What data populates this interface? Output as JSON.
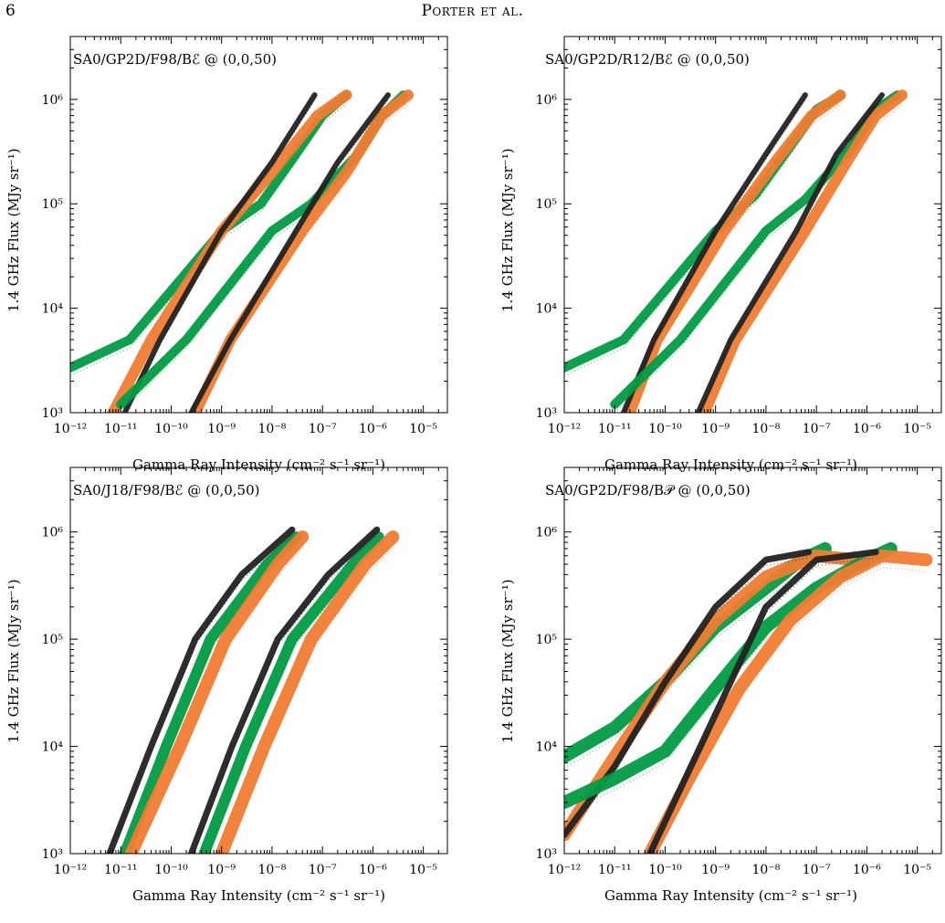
{
  "page": {
    "number": "6",
    "running_head": "Porter et al."
  },
  "colors": {
    "green": "#009c45",
    "orange": "#f07c32",
    "black": "#222222"
  },
  "chart_data": [
    {
      "type": "scatter",
      "title": "SA0/GP2D/F98/Bℰ @ (0,0,50)",
      "xlabel": "Gamma Ray Intensity (cm⁻² s⁻¹ sr⁻¹)",
      "ylabel": "1.4 GHz Flux (MJy sr⁻¹)",
      "x_scale": "log",
      "y_scale": "log",
      "xlim": [
        1e-12,
        3e-05
      ],
      "ylim": [
        1000,
        4000000
      ],
      "x_ticks": [
        "10⁻¹²",
        "10⁻¹¹",
        "10⁻¹⁰",
        "10⁻⁹",
        "10⁻⁸",
        "10⁻⁷",
        "10⁻⁶",
        "10⁻⁵"
      ],
      "y_ticks": [
        "10³",
        "10⁴",
        "10⁵",
        "10⁶"
      ],
      "series": [
        {
          "color": "green",
          "width": 10,
          "points": [
            [
              1e-12,
              2700
            ],
            [
              1.5e-11,
              5000
            ],
            [
              1e-09,
              55000
            ],
            [
              6e-09,
              100000
            ],
            [
              3e-08,
              300000
            ],
            [
              1e-07,
              700000
            ],
            [
              3e-07,
              1100000
            ]
          ]
        },
        {
          "color": "orange",
          "width": 12,
          "points": [
            [
              7e-12,
              1000
            ],
            [
              4e-11,
              5000
            ],
            [
              1e-09,
              55000
            ],
            [
              1e-08,
              200000
            ],
            [
              8e-08,
              700000
            ],
            [
              3e-07,
              1100000
            ]
          ]
        },
        {
          "color": "black",
          "width": 6,
          "points": [
            [
              1.2e-11,
              1000
            ],
            [
              6e-11,
              5000
            ],
            [
              1e-09,
              55000
            ],
            [
              1e-08,
              250000
            ],
            [
              7e-08,
              1100000
            ]
          ]
        },
        {
          "color": "green",
          "width": 10,
          "points": [
            [
              1e-11,
              1200
            ],
            [
              2e-10,
              5000
            ],
            [
              1e-08,
              55000
            ],
            [
              6e-08,
              100000
            ],
            [
              5e-07,
              300000
            ],
            [
              1.5e-06,
              700000
            ],
            [
              4e-06,
              1100000
            ]
          ]
        },
        {
          "color": "orange",
          "width": 12,
          "points": [
            [
              3e-10,
              1000
            ],
            [
              1.5e-09,
              5000
            ],
            [
              4e-08,
              55000
            ],
            [
              3e-07,
              200000
            ],
            [
              1.5e-06,
              700000
            ],
            [
              5e-06,
              1100000
            ]
          ]
        },
        {
          "color": "black",
          "width": 6,
          "points": [
            [
              2.5e-10,
              1000
            ],
            [
              1.5e-09,
              5000
            ],
            [
              3e-08,
              55000
            ],
            [
              2e-07,
              250000
            ],
            [
              2e-06,
              1100000
            ]
          ]
        }
      ]
    },
    {
      "type": "scatter",
      "title": "SA0/GP2D/R12/Bℰ @ (0,0,50)",
      "xlabel": "Gamma Ray Intensity (cm⁻² s⁻¹ sr⁻¹)",
      "ylabel": "1.4 GHz Flux (MJy sr⁻¹)",
      "x_scale": "log",
      "y_scale": "log",
      "xlim": [
        1e-12,
        3e-05
      ],
      "ylim": [
        1000,
        4000000
      ],
      "x_ticks": [
        "10⁻¹²",
        "10⁻¹¹",
        "10⁻¹⁰",
        "10⁻⁹",
        "10⁻⁸",
        "10⁻⁷",
        "10⁻⁶",
        "10⁻⁵"
      ],
      "y_ticks": [
        "10³",
        "10⁴",
        "10⁵",
        "10⁶"
      ],
      "series": [
        {
          "color": "green",
          "width": 10,
          "points": [
            [
              1e-12,
              2700
            ],
            [
              1.5e-11,
              5000
            ],
            [
              1e-09,
              55000
            ],
            [
              6e-09,
              120000
            ],
            [
              3e-08,
              350000
            ],
            [
              1e-07,
              800000
            ],
            [
              3e-07,
              1100000
            ]
          ]
        },
        {
          "color": "orange",
          "width": 12,
          "points": [
            [
              2e-11,
              1000
            ],
            [
              7e-11,
              5000
            ],
            [
              1.5e-09,
              55000
            ],
            [
              1.5e-08,
              250000
            ],
            [
              8e-08,
              700000
            ],
            [
              3e-07,
              1100000
            ]
          ]
        },
        {
          "color": "black",
          "width": 6,
          "points": [
            [
              1.5e-11,
              1000
            ],
            [
              6e-11,
              5000
            ],
            [
              1e-09,
              55000
            ],
            [
              1e-08,
              300000
            ],
            [
              6e-08,
              1100000
            ]
          ]
        },
        {
          "color": "green",
          "width": 10,
          "points": [
            [
              1e-11,
              1200
            ],
            [
              2e-10,
              5000
            ],
            [
              1e-08,
              55000
            ],
            [
              6e-08,
              110000
            ],
            [
              5e-07,
              350000
            ],
            [
              1.5e-06,
              800000
            ],
            [
              4e-06,
              1100000
            ]
          ]
        },
        {
          "color": "orange",
          "width": 12,
          "points": [
            [
              6e-10,
              1000
            ],
            [
              2.5e-09,
              5000
            ],
            [
              6e-08,
              55000
            ],
            [
              4e-07,
              250000
            ],
            [
              1.5e-06,
              700000
            ],
            [
              5e-06,
              1100000
            ]
          ]
        },
        {
          "color": "black",
          "width": 6,
          "points": [
            [
              4.5e-10,
              1000
            ],
            [
              2e-09,
              5000
            ],
            [
              4e-08,
              55000
            ],
            [
              2.5e-07,
              300000
            ],
            [
              2e-06,
              1100000
            ]
          ]
        }
      ]
    },
    {
      "type": "scatter",
      "title": "SA0/J18/F98/Bℰ @ (0,0,50)",
      "xlabel": "Gamma Ray Intensity (cm⁻² s⁻¹ sr⁻¹)",
      "ylabel": "1.4 GHz Flux (MJy sr⁻¹)",
      "x_scale": "log",
      "y_scale": "log",
      "xlim": [
        1e-12,
        3e-05
      ],
      "ylim": [
        1000,
        4000000
      ],
      "x_ticks": [
        "10⁻¹²",
        "10⁻¹¹",
        "10⁻¹⁰",
        "10⁻⁹",
        "10⁻⁸",
        "10⁻⁷",
        "10⁻⁶",
        "10⁻⁵"
      ],
      "y_ticks": [
        "10³",
        "10⁴",
        "10⁵",
        "10⁶"
      ],
      "series": [
        {
          "color": "green",
          "width": 12,
          "points": [
            [
              1.2e-11,
              1000
            ],
            [
              8e-11,
              10000
            ],
            [
              6e-10,
              100000
            ],
            [
              8e-09,
              500000
            ],
            [
              3e-08,
              900000
            ]
          ]
        },
        {
          "color": "orange",
          "width": 14,
          "points": [
            [
              1.6e-11,
              1000
            ],
            [
              1.5e-10,
              10000
            ],
            [
              1.2e-09,
              100000
            ],
            [
              1.3e-08,
              500000
            ],
            [
              4e-08,
              900000
            ]
          ]
        },
        {
          "color": "black",
          "width": 7,
          "points": [
            [
              6e-12,
              1000
            ],
            [
              4e-11,
              10000
            ],
            [
              3e-10,
              100000
            ],
            [
              2.5e-09,
              400000
            ],
            [
              2.5e-08,
              1050000
            ]
          ]
        },
        {
          "color": "green",
          "width": 12,
          "points": [
            [
              4.5e-10,
              1000
            ],
            [
              3e-09,
              10000
            ],
            [
              2.5e-08,
              100000
            ],
            [
              4e-07,
              500000
            ],
            [
              1.3e-06,
              900000
            ]
          ]
        },
        {
          "color": "orange",
          "width": 14,
          "points": [
            [
              1e-09,
              1000
            ],
            [
              7e-09,
              10000
            ],
            [
              6e-08,
              100000
            ],
            [
              7e-07,
              500000
            ],
            [
              2.5e-06,
              900000
            ]
          ]
        },
        {
          "color": "black",
          "width": 7,
          "points": [
            [
              2.5e-10,
              1000
            ],
            [
              1.6e-09,
              10000
            ],
            [
              1.3e-08,
              100000
            ],
            [
              1.3e-07,
              400000
            ],
            [
              1.2e-06,
              1050000
            ]
          ]
        }
      ]
    },
    {
      "type": "scatter",
      "title": "SA0/GP2D/F98/B𝒫 @ (0,0,50)",
      "xlabel": "Gamma Ray Intensity (cm⁻² s⁻¹ sr⁻¹)",
      "ylabel": "1.4 GHz Flux (MJy sr⁻¹)",
      "x_scale": "log",
      "y_scale": "log",
      "xlim": [
        1e-12,
        3e-05
      ],
      "ylim": [
        1000,
        4000000
      ],
      "x_ticks": [
        "10⁻¹²",
        "10⁻¹¹",
        "10⁻¹⁰",
        "10⁻⁹",
        "10⁻⁸",
        "10⁻⁷",
        "10⁻⁶",
        "10⁻⁵"
      ],
      "y_ticks": [
        "10³",
        "10⁴",
        "10⁵",
        "10⁶"
      ],
      "series": [
        {
          "color": "green",
          "width": 14,
          "points": [
            [
              1e-12,
              8000
            ],
            [
              1e-11,
              15000
            ],
            [
              1e-10,
              40000
            ],
            [
              1e-09,
              130000
            ],
            [
              1e-08,
              300000
            ],
            [
              5e-08,
              550000
            ],
            [
              1.5e-07,
              700000
            ]
          ]
        },
        {
          "color": "orange",
          "width": 14,
          "points": [
            [
              1e-12,
              1500
            ],
            [
              1e-11,
              8000
            ],
            [
              1e-10,
              40000
            ],
            [
              1e-09,
              150000
            ],
            [
              1e-08,
              380000
            ],
            [
              1e-07,
              600000
            ],
            [
              6e-07,
              550000
            ]
          ]
        },
        {
          "color": "black",
          "width": 7,
          "points": [
            [
              1e-12,
              1500
            ],
            [
              1e-11,
              6500
            ],
            [
              1e-10,
              40000
            ],
            [
              1e-09,
              200000
            ],
            [
              1e-08,
              550000
            ],
            [
              7e-08,
              650000
            ]
          ]
        },
        {
          "color": "green",
          "width": 14,
          "points": [
            [
              1e-12,
              3000
            ],
            [
              1e-11,
              5000
            ],
            [
              1e-10,
              9000
            ],
            [
              1e-09,
              35000
            ],
            [
              1e-08,
              130000
            ],
            [
              1e-07,
              300000
            ],
            [
              1e-06,
              550000
            ],
            [
              3e-06,
              700000
            ]
          ]
        },
        {
          "color": "orange",
          "width": 14,
          "points": [
            [
              5e-11,
              1000
            ],
            [
              3e-10,
              5000
            ],
            [
              3e-09,
              35000
            ],
            [
              3e-08,
              150000
            ],
            [
              3e-07,
              380000
            ],
            [
              2e-06,
              600000
            ],
            [
              1.5e-05,
              550000
            ]
          ]
        },
        {
          "color": "black",
          "width": 7,
          "points": [
            [
              5e-11,
              1000
            ],
            [
              2e-10,
              4000
            ],
            [
              1e-09,
              20000
            ],
            [
              1e-08,
              200000
            ],
            [
              1e-07,
              550000
            ],
            [
              1.5e-06,
              650000
            ]
          ]
        }
      ]
    }
  ]
}
